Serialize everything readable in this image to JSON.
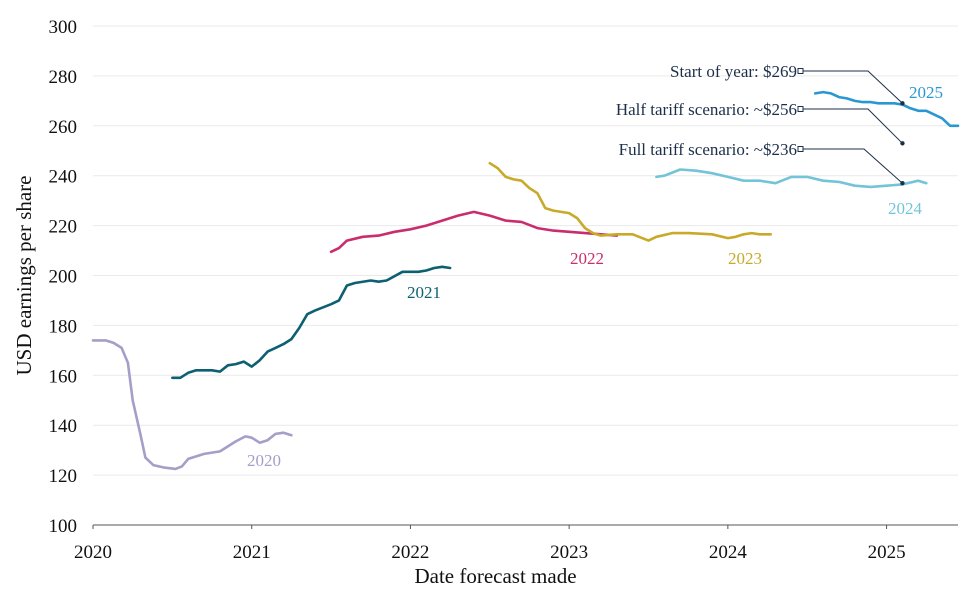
{
  "chart_data": {
    "type": "line",
    "xlabel": "Date forecast made",
    "ylabel": "USD earnings per share",
    "xlim": [
      2020.0,
      2025.45
    ],
    "ylim": [
      100,
      300
    ],
    "x_ticks": [
      "2020",
      "2021",
      "2022",
      "2023",
      "2024",
      "2025"
    ],
    "y_ticks": [
      "100",
      "120",
      "140",
      "160",
      "180",
      "200",
      "220",
      "240",
      "260",
      "280",
      "300"
    ],
    "grid": "horizontal",
    "series": [
      {
        "name": "2020",
        "color": "#a39fc9",
        "x": [
          2020.0,
          2020.08,
          2020.13,
          2020.18,
          2020.22,
          2020.25,
          2020.3,
          2020.33,
          2020.38,
          2020.45,
          2020.52,
          2020.56,
          2020.6,
          2020.7,
          2020.8,
          2020.9,
          2020.96,
          2021.0,
          2021.05,
          2021.1,
          2021.15,
          2021.2,
          2021.25
        ],
        "y": [
          174,
          174,
          173,
          171,
          165,
          150,
          136,
          127,
          124,
          123,
          122.5,
          123.5,
          126.5,
          128.5,
          129.5,
          133.5,
          135.5,
          135,
          133,
          134,
          136.5,
          137,
          136
        ]
      },
      {
        "name": "2021",
        "color": "#0d5f72",
        "x": [
          2020.5,
          2020.55,
          2020.6,
          2020.65,
          2020.75,
          2020.8,
          2020.85,
          2020.9,
          2020.95,
          2021.0,
          2021.05,
          2021.1,
          2021.15,
          2021.2,
          2021.25,
          2021.3,
          2021.35,
          2021.4,
          2021.5,
          2021.55,
          2021.6,
          2021.65,
          2021.75,
          2021.8,
          2021.85,
          2021.95,
          2022.05,
          2022.1,
          2022.15,
          2022.2,
          2022.25
        ],
        "y": [
          159,
          159,
          161,
          162,
          162,
          161.5,
          164,
          164.5,
          165.5,
          163.5,
          166,
          169.5,
          171,
          172.5,
          174.5,
          179,
          184.5,
          186,
          188.5,
          190,
          196,
          197,
          198,
          197.5,
          198,
          201.5,
          201.5,
          202,
          203,
          203.5,
          203
        ]
      },
      {
        "name": "2022",
        "color": "#c92d6e",
        "x": [
          2021.5,
          2021.55,
          2021.6,
          2021.7,
          2021.8,
          2021.9,
          2022.0,
          2022.1,
          2022.2,
          2022.3,
          2022.4,
          2022.5,
          2022.6,
          2022.7,
          2022.8,
          2022.9,
          2023.0,
          2023.1,
          2023.2,
          2023.3
        ],
        "y": [
          209.5,
          211,
          214,
          215.5,
          216,
          217.5,
          218.5,
          220,
          222,
          224,
          225.5,
          224,
          222,
          221.5,
          219,
          218,
          217.5,
          217,
          216.5,
          216
        ]
      },
      {
        "name": "2023",
        "color": "#c9a92a",
        "x": [
          2022.5,
          2022.55,
          2022.6,
          2022.65,
          2022.7,
          2022.75,
          2022.8,
          2022.85,
          2022.9,
          2023.0,
          2023.05,
          2023.1,
          2023.15,
          2023.2,
          2023.3,
          2023.4,
          2023.5,
          2023.55,
          2023.65,
          2023.75,
          2023.9,
          2024.0,
          2024.05,
          2024.1,
          2024.15,
          2024.2,
          2024.27
        ],
        "y": [
          245,
          243,
          239.5,
          238.5,
          238,
          235,
          233,
          227,
          226,
          225,
          223,
          219,
          217,
          216,
          216.5,
          216.5,
          214,
          215.5,
          217,
          217,
          216.5,
          215,
          215.5,
          216.5,
          217,
          216.5,
          216.5
        ]
      },
      {
        "name": "2024",
        "color": "#73c4d8",
        "x": [
          2023.55,
          2023.6,
          2023.7,
          2023.8,
          2023.9,
          2024.0,
          2024.1,
          2024.2,
          2024.3,
          2024.4,
          2024.5,
          2024.6,
          2024.7,
          2024.8,
          2024.9,
          2025.0,
          2025.1,
          2025.2,
          2025.25
        ],
        "y": [
          239.5,
          240,
          242.5,
          242,
          241,
          239.5,
          238,
          238,
          237,
          239.5,
          239.5,
          238,
          237.5,
          236,
          235.5,
          236,
          236.5,
          238,
          237
        ]
      },
      {
        "name": "2025",
        "color": "#2a97d2",
        "x": [
          2024.55,
          2024.6,
          2024.65,
          2024.7,
          2024.75,
          2024.8,
          2024.85,
          2024.9,
          2024.95,
          2025.0,
          2025.05,
          2025.1,
          2025.15,
          2025.2,
          2025.25,
          2025.3,
          2025.35,
          2025.4,
          2025.45
        ],
        "y": [
          273,
          273.5,
          273,
          271.5,
          271,
          270,
          269.5,
          269.5,
          269,
          269,
          269,
          268.5,
          267,
          266,
          266,
          264.5,
          263,
          260,
          260
        ]
      }
    ],
    "annotations": [
      {
        "text": "Start of year: $269",
        "point": [
          2025.1,
          269
        ]
      },
      {
        "text": "Half tariff scenario: ~$256",
        "point": [
          2025.1,
          253
        ]
      },
      {
        "text": "Full tariff scenario: ~$236",
        "point": [
          2025.1,
          237
        ]
      }
    ]
  }
}
